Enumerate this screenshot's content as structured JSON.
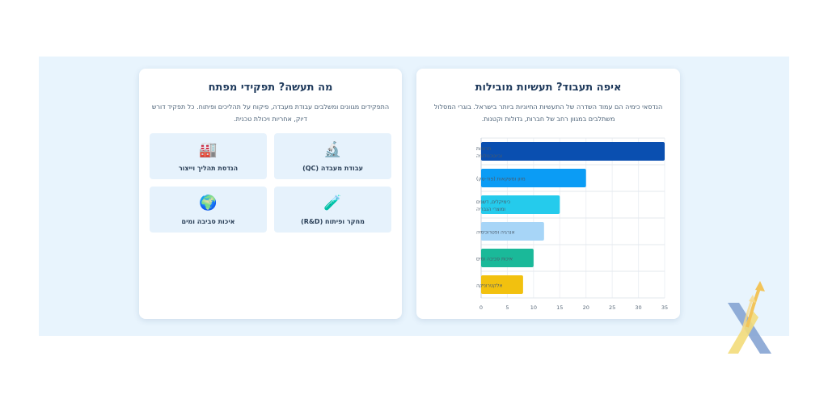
{
  "industries": {
    "title": "איפה תעבוד? תעשיות מובילות",
    "description": "הנדסאי כימיה הם עמוד השדרה של התעשיות החיוניות ביותר בישראל. בוגרי המסלול משתלבים במגוון רחב של חברות, גדולות וקטנות."
  },
  "roles": {
    "title": "מה תעשה? תפקידי מפתח",
    "description": "התפקידים מגוונים ומשלבים עבודת מעבדה, פיקוח על תהליכים ופיתוח. כל תפקיד דורש דיוק, אחריות ויכולת טכנית.",
    "items": [
      {
        "label": "עבודת מעבדה (QC)",
        "icon": "microscope-icon",
        "glyph": "🔬"
      },
      {
        "label": "הנדסת תהליך וייצור",
        "icon": "factory-icon",
        "glyph": "🏭"
      },
      {
        "label": "מחקר ופיתוח (R&D)",
        "icon": "test-tube-icon",
        "glyph": "🧪"
      },
      {
        "label": "איכות סביבה ומים",
        "icon": "globe-icon",
        "glyph": "🌍"
      }
    ]
  },
  "chart_data": {
    "type": "bar",
    "orientation": "horizontal",
    "categories": [
      [
        "תרופות",
        "וביוטכנולוגיה"
      ],
      [
        "מזון ומשקאות (פוד-טק)"
      ],
      [
        "כימיקלים, דשנים",
        "ומוצרי הגבריה"
      ],
      [
        "אנרגיה ופטרוכימיה"
      ],
      [
        "איכות סביבה ומים"
      ],
      [
        "אלקטרוניקה"
      ]
    ],
    "values": [
      35,
      20,
      15,
      12,
      10,
      8
    ],
    "colors": [
      "#0a4fb0",
      "#0b9cf5",
      "#25cbec",
      "#a7d5f7",
      "#1ab999",
      "#f2c10f"
    ],
    "xlim": [
      0,
      35
    ],
    "xticks": [
      0,
      5,
      10,
      15,
      20,
      25,
      30,
      35
    ],
    "grid": true
  }
}
